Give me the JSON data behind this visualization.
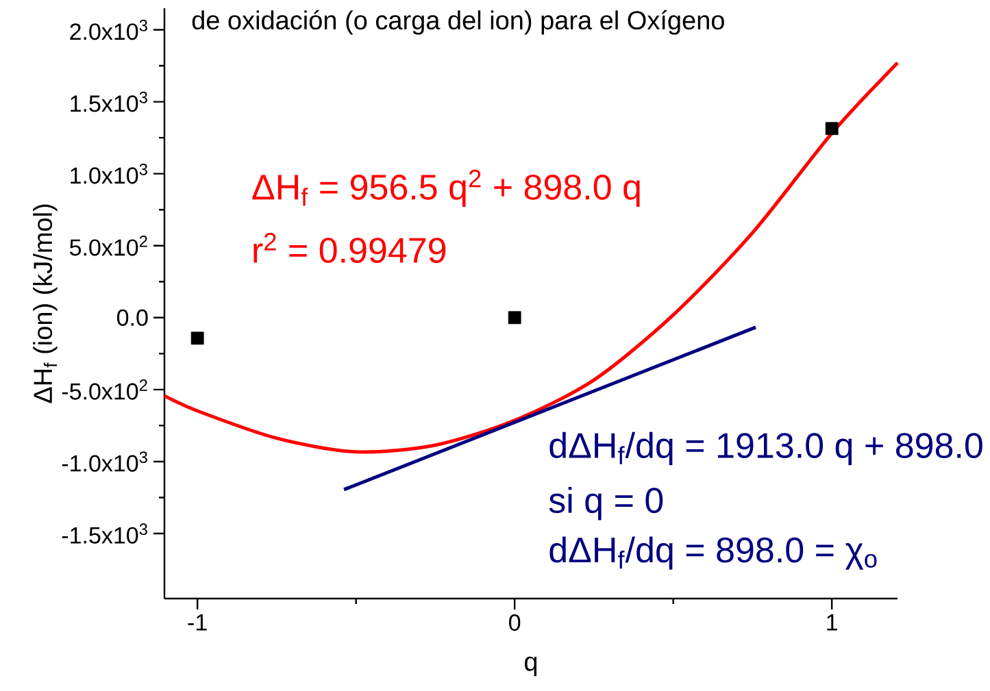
{
  "chart_data": {
    "type": "scatter",
    "title": "de oxidación (o carga del ion) para el Oxígeno",
    "xlabel": "q",
    "ylabel": "ΔH$_{f}$ (ion) (kJ/mol)",
    "xlim": [
      -1.104,
      1.207
    ],
    "ylim": [
      -1952,
      2150
    ],
    "xticks": [
      -1,
      0,
      1
    ],
    "yticks": [
      {
        "value": -1500,
        "label": "-1.5x10$^{3}$"
      },
      {
        "value": -1000,
        "label": "-1.0x10$^{3}$"
      },
      {
        "value": -500,
        "label": "-5.0x10$^{2}$"
      },
      {
        "value": 0,
        "label": "0.0"
      },
      {
        "value": 500,
        "label": "5.0x10$^{2}$"
      },
      {
        "value": 1000,
        "label": "1.0x10$^{3}$"
      },
      {
        "value": 1500,
        "label": "1.5x10$^{3}$"
      },
      {
        "value": 2000,
        "label": "2.0x10$^{3}$"
      }
    ],
    "grid": false,
    "series": [
      {
        "color": "#000000",
        "marker": "square",
        "x": [
          -1,
          0,
          1
        ],
        "values": [
          -143,
          0,
          1314
        ]
      },
      {
        "type": "line",
        "color": "#ff0000",
        "x": [
          -1.104,
          -1,
          -0.75,
          -0.5,
          -0.25,
          0,
          0.25,
          0.5,
          0.75,
          1,
          1.207
        ],
        "values": [
          -543,
          -648,
          -838,
          -933,
          -886,
          -714,
          -433,
          19,
          590,
          1281,
          1771
        ]
      },
      {
        "type": "line",
        "color": "#000080",
        "x": [
          -0.538,
          0.76
        ],
        "values": [
          -1195,
          -67
        ]
      }
    ],
    "annotations": [
      "ΔH$_{f}$ = 956.5 q$^{2}$ + 898.0 q",
      "r$^{2}$ = 0.99479",
      "dΔH$_{f}$/dq = 1913.0 q + 898.0",
      "si q = 0",
      "dΔH$_{f}$/dq = 898.0 = χ$_{o}$"
    ]
  }
}
